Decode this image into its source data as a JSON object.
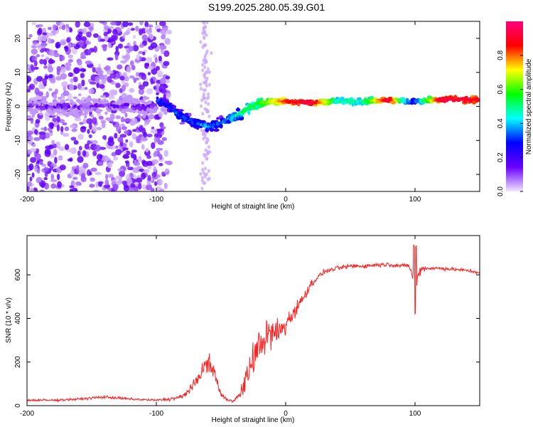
{
  "title": "S199.2025.280.05.39.G01",
  "chart_data": [
    {
      "type": "heatmap",
      "xlabel": "Height of straight line (km)",
      "ylabel": "Frequency (Hz)",
      "xlim": [
        -200,
        150
      ],
      "ylim": [
        -25,
        25
      ],
      "x_ticks": [
        -200,
        -100,
        0,
        100
      ],
      "y_ticks": [
        -20,
        -10,
        0,
        10,
        20
      ],
      "colorbar": {
        "label": "Normalized spectral amplitude",
        "range": [
          0,
          1
        ],
        "ticks": [
          "0.0",
          "0.2",
          "0.4",
          "0.6",
          "0.8"
        ],
        "colors": [
          "#f0e6ff",
          "#6a00ff",
          "#0000ff",
          "#00ffff",
          "#00ff00",
          "#ffff00",
          "#ff0000",
          "#ff0080"
        ]
      },
      "ridge": {
        "x": [
          -100,
          -90,
          -80,
          -70,
          -60,
          -50,
          -40,
          -30,
          -20,
          -10,
          0,
          20,
          40,
          60,
          80,
          90,
          100,
          120,
          150
        ],
        "freq": [
          2,
          0,
          -3,
          -5,
          -6,
          -5,
          -3,
          -1,
          1,
          1.5,
          1.5,
          1,
          1.5,
          1.5,
          2,
          1.5,
          1.5,
          2,
          2
        ],
        "amplitude": [
          0.3,
          0.3,
          0.35,
          0.35,
          0.4,
          0.35,
          0.45,
          0.55,
          0.6,
          0.7,
          0.85,
          0.95,
          0.5,
          0.5,
          0.95,
          0.5,
          0.3,
          0.95,
          0.9
        ]
      }
    },
    {
      "type": "line",
      "xlabel": "Height of straight line (km)",
      "ylabel": "SNR (10 * v/v)",
      "xlim": [
        -200,
        150
      ],
      "ylim": [
        0,
        780
      ],
      "x_ticks": [
        -200,
        -100,
        0,
        100
      ],
      "y_ticks": [
        0,
        200,
        400,
        600
      ],
      "color": "#ff2020",
      "series": [
        {
          "name": "SNR",
          "x": [
            -200,
            -180,
            -160,
            -140,
            -120,
            -100,
            -90,
            -80,
            -70,
            -65,
            -60,
            -55,
            -50,
            -45,
            -40,
            -35,
            -30,
            -25,
            -20,
            -15,
            -10,
            -5,
            0,
            5,
            10,
            15,
            20,
            25,
            30,
            40,
            50,
            60,
            70,
            80,
            90,
            95,
            100,
            105,
            110,
            120,
            130,
            140,
            150
          ],
          "y": [
            25,
            25,
            30,
            40,
            30,
            25,
            30,
            40,
            100,
            160,
            200,
            150,
            50,
            25,
            25,
            50,
            130,
            220,
            280,
            320,
            330,
            340,
            370,
            420,
            460,
            510,
            560,
            590,
            615,
            630,
            640,
            640,
            645,
            648,
            640,
            645,
            560,
            630,
            630,
            630,
            625,
            620,
            610
          ],
          "noise": [
            8,
            8,
            8,
            10,
            8,
            8,
            12,
            20,
            35,
            50,
            60,
            45,
            20,
            10,
            12,
            40,
            80,
            110,
            130,
            120,
            110,
            90,
            80,
            60,
            45,
            35,
            25,
            20,
            15,
            15,
            15,
            15,
            15,
            15,
            15,
            15,
            80,
            20,
            15,
            12,
            12,
            12,
            12
          ]
        }
      ]
    }
  ]
}
